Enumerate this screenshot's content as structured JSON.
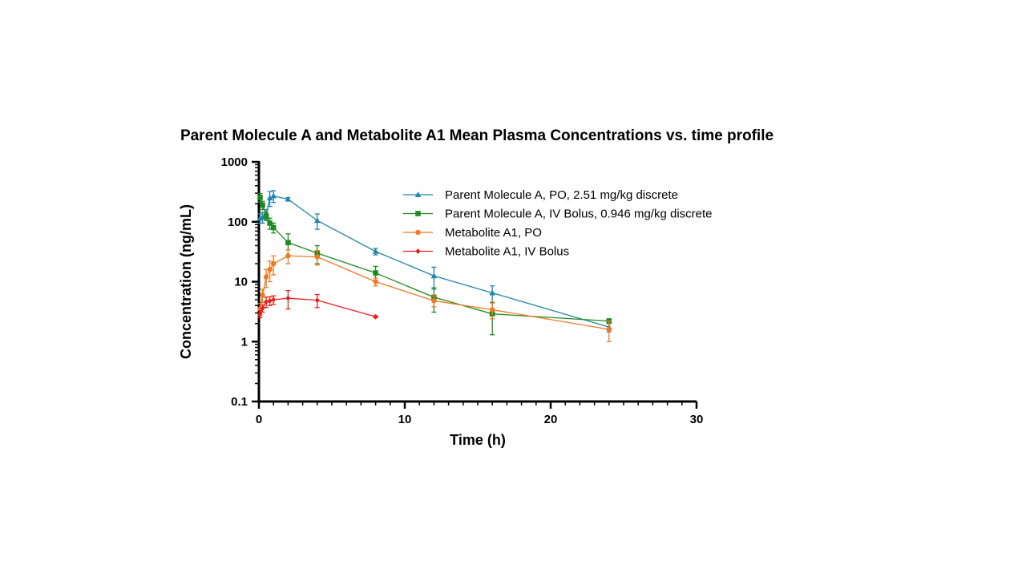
{
  "chart_data": {
    "type": "line",
    "title": "Parent Molecule A and Metabolite A1 Mean Plasma Concentrations vs. time profile",
    "xlabel": "Time (h)",
    "ylabel": "Concentration (ng/mL)",
    "xlim": [
      0,
      30
    ],
    "ylim": [
      0.1,
      1000
    ],
    "yscale": "log",
    "xticks": [
      "0",
      "10",
      "20",
      "30"
    ],
    "yticks": [
      "0.1",
      "1",
      "10",
      "100",
      "1000"
    ],
    "legend_position": "top-right",
    "grid": false,
    "series": [
      {
        "name": "Parent Molecule A, PO, 2.51 mg/kg discrete",
        "color": "#2386a8",
        "marker": "triangle",
        "x": [
          0.083,
          0.25,
          0.5,
          0.75,
          1,
          2,
          4,
          8,
          12,
          16,
          24
        ],
        "y": [
          115,
          120,
          135,
          250,
          270,
          238,
          105,
          32,
          12.5,
          6.5,
          1.75
        ],
        "err": [
          20,
          25,
          25,
          70,
          60,
          15,
          30,
          4,
          5,
          2,
          0.3
        ]
      },
      {
        "name": "Parent Molecule A, IV Bolus, 0.946 mg/kg discrete",
        "color": "#1f8a22",
        "marker": "square",
        "x": [
          0.083,
          0.25,
          0.5,
          0.75,
          1,
          2,
          4,
          8,
          12,
          16,
          24
        ],
        "y": [
          255,
          190,
          125,
          95,
          80,
          45,
          30,
          14,
          5.5,
          2.9,
          2.2
        ],
        "err": [
          40,
          30,
          20,
          20,
          15,
          18,
          10,
          4,
          2.4,
          1.6,
          0.2
        ]
      },
      {
        "name": "Metabolite A1, PO",
        "color": "#f07823",
        "marker": "circle",
        "x": [
          0.083,
          0.25,
          0.5,
          0.75,
          1,
          2,
          4,
          8,
          12,
          16,
          24
        ],
        "y": [
          3.5,
          6,
          12,
          16,
          20,
          27,
          26,
          10,
          4.8,
          3.4,
          1.6
        ],
        "err": [
          0.8,
          1.5,
          4,
          6,
          7,
          7,
          7,
          1.5,
          1,
          1,
          0.6
        ]
      },
      {
        "name": "Metabolite A1, IV Bolus",
        "color": "#e8201f",
        "marker": "diamond",
        "x": [
          0.083,
          0.25,
          0.5,
          0.75,
          1,
          2,
          4,
          8
        ],
        "y": [
          2.9,
          3.6,
          4.6,
          4.8,
          5.0,
          5.3,
          4.9,
          2.6
        ],
        "err": [
          0.4,
          0.5,
          0.9,
          0.8,
          0.8,
          1.8,
          1.2,
          0.1
        ]
      }
    ]
  }
}
